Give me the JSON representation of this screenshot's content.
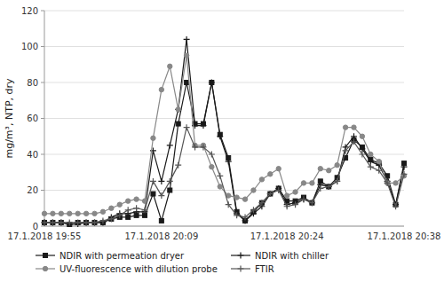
{
  "chart_data": {
    "type": "line",
    "y_label": "mg/m³, NTP, dry",
    "categories": [
      "17.1.2018 19:55",
      null,
      null,
      null,
      null,
      null,
      null,
      null,
      null,
      null,
      null,
      null,
      null,
      null,
      "17.1.2018 20:09",
      null,
      null,
      null,
      null,
      null,
      null,
      null,
      null,
      null,
      null,
      null,
      null,
      null,
      null,
      "17.1.2018 20:24",
      null,
      null,
      null,
      null,
      null,
      null,
      null,
      null,
      null,
      null,
      null,
      null,
      null,
      "17.1.2018 20:38"
    ],
    "series": [
      {
        "name": "NDIR with permeation dryer",
        "color": "#1a1a1a",
        "marker": "square",
        "values": [
          2,
          2,
          2,
          1,
          2,
          2,
          2,
          2,
          4,
          5,
          5,
          6,
          6,
          18,
          3,
          20,
          57,
          80,
          57,
          57,
          80,
          51,
          38,
          8,
          3,
          8,
          13,
          18,
          21,
          14,
          14,
          16,
          13,
          25,
          22,
          27,
          38,
          48,
          44,
          37,
          35,
          28,
          12,
          35
        ]
      },
      {
        "name": "NDIR with chiller",
        "color": "#1a1a1a",
        "marker": "plus",
        "values": [
          2,
          2,
          2,
          1,
          1,
          2,
          2,
          2,
          5,
          7,
          7,
          8,
          8,
          42,
          25,
          45,
          65,
          104,
          56,
          56,
          80,
          50,
          36,
          7,
          3,
          7,
          11,
          18,
          21,
          12,
          13,
          15,
          13,
          23,
          22,
          25,
          44,
          50,
          43,
          36,
          34,
          25,
          12,
          33
        ]
      },
      {
        "name": "UV-fluorescence with dilution probe",
        "color": "#888888",
        "marker": "circle",
        "values": [
          7,
          7,
          7,
          7,
          7,
          7,
          7,
          8,
          10,
          12,
          14,
          15,
          14,
          49,
          76,
          89,
          65,
          95,
          45,
          45,
          33,
          22,
          17,
          16,
          15,
          20,
          26,
          29,
          32,
          17,
          19,
          24,
          24,
          32,
          31,
          34,
          55,
          55,
          50,
          40,
          36,
          24,
          24,
          28
        ]
      },
      {
        "name": "FTIR",
        "color": "#555555",
        "marker": "plus",
        "values": [
          2,
          2,
          2,
          2,
          2,
          2,
          2,
          3,
          4,
          6,
          9,
          10,
          9,
          25,
          17,
          25,
          34,
          55,
          44,
          44,
          40,
          28,
          12,
          6,
          5,
          9,
          13,
          18,
          20,
          11,
          12,
          15,
          13,
          21,
          22,
          25,
          42,
          47,
          40,
          33,
          31,
          24,
          11,
          29
        ]
      }
    ],
    "ylim": [
      0,
      120
    ],
    "yticks": [
      0,
      20,
      40,
      60,
      80,
      100,
      120
    ],
    "grid": true,
    "legend": "bottom"
  }
}
